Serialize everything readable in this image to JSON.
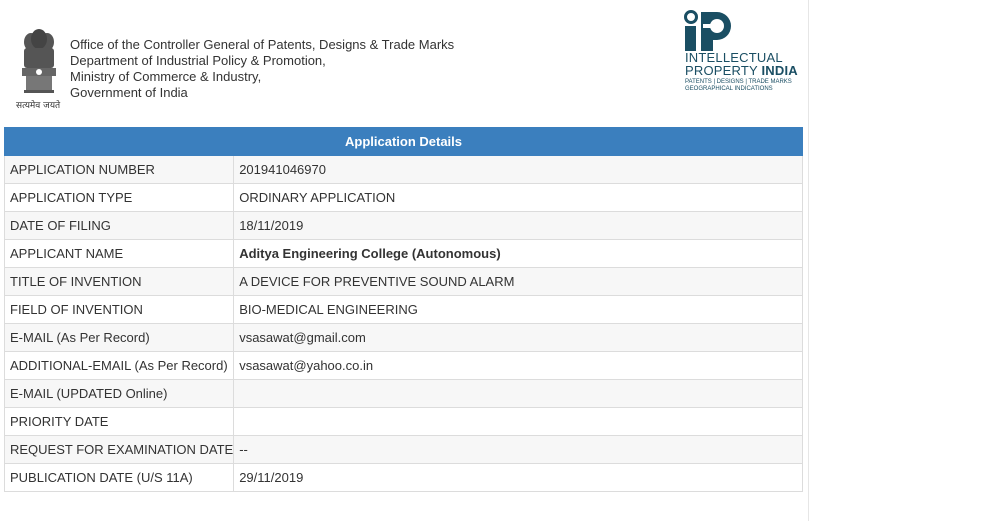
{
  "header": {
    "emblem_caption": "सत्यमेव जयते",
    "office_lines": [
      "Office of the Controller General of Patents, Designs & Trade Marks",
      "Department of Industrial Policy & Promotion,",
      "Ministry of Commerce & Industry,",
      "Government of India"
    ],
    "logo": {
      "line1": "INTELLECTUAL",
      "line2a": "PROPERTY ",
      "line2b": "INDIA",
      "sub1": "PATENTS | DESIGNS | TRADE MARKS",
      "sub2": "GEOGRAPHICAL INDICATIONS",
      "color": "#1a4e63"
    }
  },
  "details": {
    "heading": "Application Details",
    "header_color": "#3b7fbe",
    "rows": [
      {
        "label": "APPLICATION NUMBER",
        "value": "201941046970"
      },
      {
        "label": "APPLICATION TYPE",
        "value": "ORDINARY APPLICATION"
      },
      {
        "label": "DATE OF FILING",
        "value": "18/11/2019"
      },
      {
        "label": "APPLICANT NAME",
        "value": "Aditya Engineering College (Autonomous)"
      },
      {
        "label": "TITLE OF INVENTION",
        "value": "A DEVICE FOR PREVENTIVE SOUND ALARM"
      },
      {
        "label": "FIELD OF INVENTION",
        "value": "BIO-MEDICAL ENGINEERING"
      },
      {
        "label": "E-MAIL (As Per Record)",
        "value": "vsasawat@gmail.com"
      },
      {
        "label": "ADDITIONAL-EMAIL (As Per Record)",
        "value": "vsasawat@yahoo.co.in"
      },
      {
        "label": "E-MAIL (UPDATED Online)",
        "value": ""
      },
      {
        "label": "PRIORITY DATE",
        "value": ""
      },
      {
        "label": "REQUEST FOR EXAMINATION DATE",
        "value": "--"
      },
      {
        "label": "PUBLICATION DATE (U/S 11A)",
        "value": "29/11/2019"
      }
    ]
  }
}
